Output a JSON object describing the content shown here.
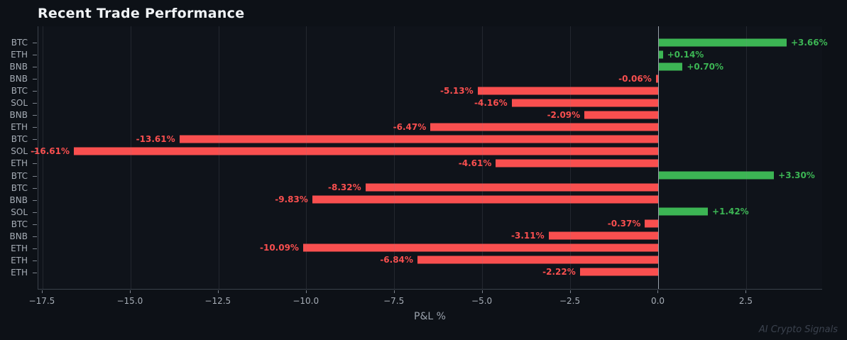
{
  "header": {
    "title": "Recent Trade Performance"
  },
  "watermark": "AI Crypto Signals",
  "colors": {
    "background": "#0d1117",
    "plot_background": "#0f131a",
    "positive": "#3cb554",
    "negative": "#f94f4f",
    "tick_label": "#a6adb6",
    "title": "#f0f3f6",
    "spine": "#3a414b",
    "zero_line": "#9aa1ab",
    "watermark": "#3b424e"
  },
  "chart_data": {
    "type": "bar",
    "orientation": "horizontal",
    "title": "Recent Trade Performance",
    "xlabel": "P&L %",
    "ylabel": "",
    "legend": "none",
    "grid": true,
    "categories": [
      "BTC",
      "ETH",
      "BNB",
      "BNB",
      "BTC",
      "SOL",
      "BNB",
      "ETH",
      "BTC",
      "SOL",
      "ETH",
      "BTC",
      "BTC",
      "BNB",
      "SOL",
      "BTC",
      "BNB",
      "ETH",
      "ETH",
      "ETH"
    ],
    "values": [
      3.66,
      0.14,
      0.7,
      -0.06,
      -5.13,
      -4.16,
      -2.09,
      -6.47,
      -13.61,
      -16.61,
      -4.61,
      3.3,
      -8.32,
      -9.83,
      1.42,
      -0.37,
      -3.11,
      -10.09,
      -6.84,
      -2.22
    ],
    "value_labels": [
      "+3.66%",
      "+0.14%",
      "+0.70%",
      "-0.06%",
      "-5.13%",
      "-4.16%",
      "-2.09%",
      "-6.47%",
      "-13.61%",
      "-16.61%",
      "-4.61%",
      "+3.30%",
      "-8.32%",
      "-9.83%",
      "+1.42%",
      "-0.37%",
      "-3.11%",
      "-10.09%",
      "-6.84%",
      "-2.22%"
    ],
    "xlim": [
      -17.62,
      4.67
    ],
    "xticks": [
      -17.5,
      -15.0,
      -12.5,
      -10.0,
      -7.5,
      -5.0,
      -2.5,
      0.0,
      2.5
    ],
    "xtick_labels": [
      "−17.5",
      "−15.0",
      "−12.5",
      "−10.0",
      "−7.5",
      "−5.0",
      "−2.5",
      "0.0",
      "2.5"
    ]
  }
}
